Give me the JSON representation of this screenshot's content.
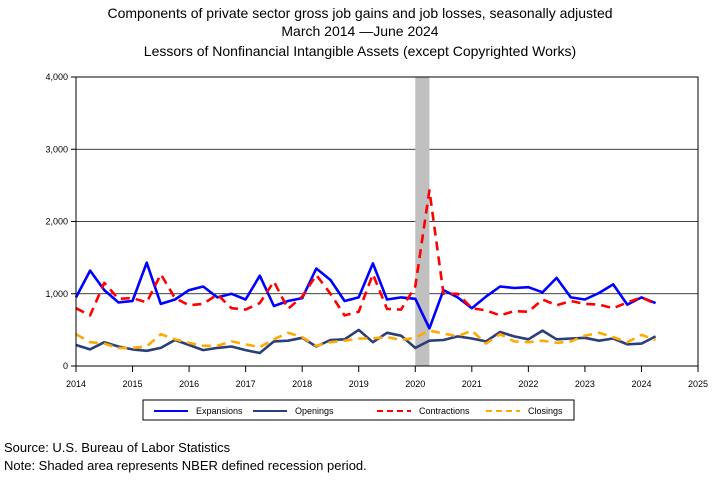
{
  "chart_data": {
    "type": "line",
    "title": "Components of private sector gross job gains and job losses, seasonally adjusted",
    "subtitle_date_start": "March 2014",
    "subtitle_date_end": "June 2024",
    "subtitle": "Lessors of Nonfinancial Intangible Assets (except Copyrighted Works)",
    "xlabel": "",
    "ylabel": "",
    "xlim": [
      2014,
      2025
    ],
    "ylim": [
      0,
      4000
    ],
    "x_ticks": [
      "2014",
      "2015",
      "2016",
      "2017",
      "2018",
      "2019",
      "2020",
      "2021",
      "2022",
      "2023",
      "2024",
      "2025"
    ],
    "y_ticks": [
      "0",
      "1,000",
      "2,000",
      "3,000",
      "4,000"
    ],
    "recession": [
      2020.0,
      2020.25
    ],
    "grid": "horizontal",
    "legend_position": "bottom",
    "x_start": 2014.0,
    "x_step": 0.25,
    "series": [
      {
        "name": "Expansions",
        "color": "#0000ff",
        "dash": "solid",
        "values": [
          950,
          1320,
          1050,
          880,
          900,
          1430,
          860,
          920,
          1050,
          1100,
          950,
          1000,
          920,
          1250,
          830,
          900,
          940,
          1350,
          1190,
          900,
          950,
          1420,
          920,
          950,
          930,
          520,
          1050,
          950,
          800,
          960,
          1100,
          1080,
          1090,
          1020,
          1220,
          950,
          920,
          1010,
          1130,
          850,
          950,
          870
        ]
      },
      {
        "name": "Openings",
        "color": "#2a3f7a",
        "dash": "solid",
        "values": [
          290,
          230,
          330,
          270,
          230,
          210,
          250,
          360,
          290,
          220,
          250,
          270,
          220,
          180,
          340,
          350,
          390,
          270,
          360,
          370,
          500,
          330,
          460,
          420,
          250,
          350,
          360,
          410,
          380,
          340,
          470,
          410,
          370,
          490,
          370,
          380,
          390,
          350,
          380,
          300,
          310,
          410
        ]
      },
      {
        "name": "Contractions",
        "color": "#ff0000",
        "dash": "dashed",
        "values": [
          800,
          700,
          1150,
          930,
          940,
          880,
          1270,
          940,
          840,
          860,
          990,
          800,
          780,
          870,
          1170,
          790,
          960,
          1260,
          1000,
          700,
          750,
          1270,
          790,
          780,
          1100,
          2430,
          1000,
          1000,
          800,
          770,
          700,
          760,
          750,
          920,
          840,
          900,
          860,
          850,
          800,
          880,
          950,
          860
        ]
      },
      {
        "name": "Closings",
        "color": "#ffaa00",
        "dash": "dashed",
        "values": [
          440,
          330,
          310,
          250,
          250,
          270,
          440,
          370,
          320,
          280,
          280,
          340,
          300,
          260,
          370,
          460,
          400,
          280,
          330,
          350,
          380,
          380,
          400,
          360,
          390,
          490,
          450,
          410,
          490,
          310,
          440,
          340,
          330,
          350,
          320,
          340,
          420,
          460,
          400,
          330,
          430,
          360
        ]
      }
    ]
  },
  "footer": {
    "source": "Source: U.S. Bureau of Labor Statistics",
    "note": "Note: Shaded area represents NBER defined recession period."
  }
}
